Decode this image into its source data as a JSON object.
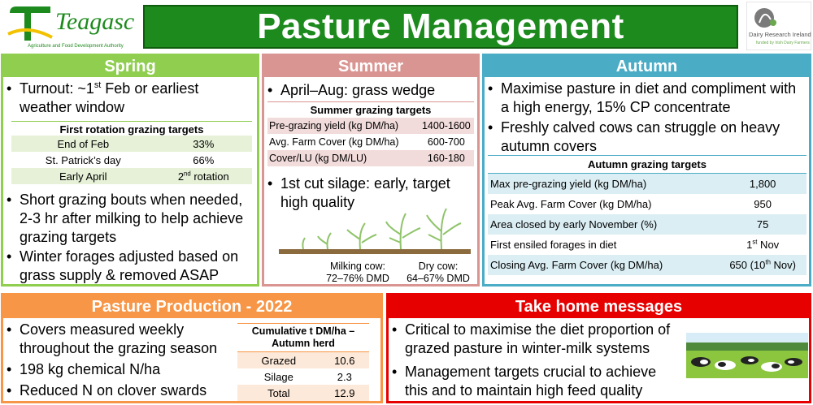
{
  "header": {
    "title": "Pasture Management",
    "logo_left_text": "Teagasc",
    "logo_left_sub": "Agriculture and Food Development Authority",
    "logo_right_text": "Dairy Research Ireland",
    "logo_right_sub": "funded by Irish Dairy Farmers"
  },
  "spring": {
    "title": "Spring",
    "bullet1_a": "Turnout: ~1",
    "bullet1_sup": "st",
    "bullet1_b": " Feb or earliest weather window",
    "table_title": "First rotation grazing targets",
    "rows": [
      {
        "label": "End of Feb",
        "value": "33%"
      },
      {
        "label": "St. Patrick’s day",
        "value": "66%"
      },
      {
        "label": "Early April",
        "value_num": "2",
        "value_sup": "nd",
        "value_rest": " rotation"
      }
    ],
    "bullet2": "Short grazing bouts when needed, 2-3 hr after milking to help achieve grazing targets",
    "bullet3": "Winter forages adjusted based on grass supply & removed ASAP"
  },
  "summer": {
    "title": "Summer",
    "bullet1": "April–Aug: grass wedge",
    "table_title": "Summer grazing targets",
    "rows": [
      {
        "label": "Pre-grazing yield (kg DM/ha)",
        "value": "1400-1600"
      },
      {
        "label": "Avg. Farm Cover (kg DM/ha)",
        "value": "600-700"
      },
      {
        "label": "Cover/LU (kg DM/LU)",
        "value": "160-180"
      }
    ],
    "bullet2": "1st cut silage: early, target high quality",
    "milking_label": "Milking cow:",
    "milking_value": "72–76% DMD",
    "dry_label": "Dry cow:",
    "dry_value": "64–67% DMD"
  },
  "autumn": {
    "title": "Autumn",
    "bullet1": "Maximise pasture in diet and compliment with a high energy, 15% CP concentrate",
    "bullet2": "Freshly calved cows can struggle on heavy autumn covers",
    "table_title": "Autumn grazing targets",
    "rows": [
      {
        "label": "Max pre-grazing yield (kg DM/ha)",
        "value": "1,800"
      },
      {
        "label": "Peak Avg. Farm Cover (kg DM/ha)",
        "value": "950"
      },
      {
        "label": "Area closed by early November (%)",
        "value": "75"
      },
      {
        "label": "First ensiled forages in diet",
        "value_num": "1",
        "value_sup": "st",
        "value_rest": " Nov"
      },
      {
        "label": "Closing Avg. Farm Cover (kg DM/ha)",
        "value_num": "650 (10",
        "value_sup": "th",
        "value_rest": " Nov)"
      }
    ]
  },
  "production": {
    "title": "Pasture Production - 2022",
    "bullet1": "Covers measured weekly throughout the grazing season",
    "bullet2": "198 kg chemical N/ha",
    "bullet3": "Reduced N on clover swards",
    "table_title": "Cumulative t DM/ha – Autumn herd",
    "rows": [
      {
        "label": "Grazed",
        "value": "10.6"
      },
      {
        "label": "Silage",
        "value": "2.3"
      },
      {
        "label": "Total",
        "value": "12.9"
      }
    ]
  },
  "messages": {
    "title": "Take home messages",
    "bullet1": "Critical to maximise the diet proportion of grazed pasture in winter-milk systems",
    "bullet2": "Management targets crucial to achieve this and to maintain high feed quality"
  },
  "colors": {
    "title_green": "#1d8a1d",
    "spring": "#8fce4f",
    "summer": "#d99592",
    "autumn": "#4bacc6",
    "production": "#f79646",
    "messages": "#e60000"
  }
}
